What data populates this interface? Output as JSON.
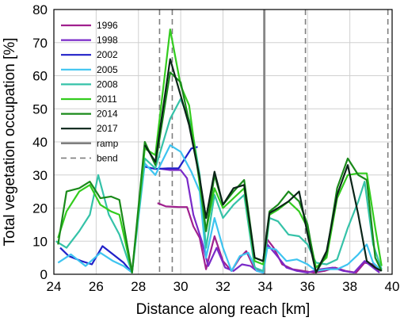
{
  "chart_data": {
    "type": "line",
    "xlabel": "Distance along reach [km]",
    "ylabel": "Total vegetation occupation [%]",
    "xlim": [
      24,
      40
    ],
    "ylim": [
      0,
      80
    ],
    "xticks": [
      24,
      26,
      28,
      30,
      32,
      34,
      36,
      38,
      40
    ],
    "yticks": [
      0,
      10,
      20,
      30,
      40,
      50,
      60,
      70,
      80
    ],
    "grid": true,
    "legend_placement": "top-left",
    "ramp": {
      "name": "ramp",
      "x": 33.95,
      "color": "#7f7f7f"
    },
    "bends": {
      "name": "bend",
      "x": [
        29.0,
        29.6,
        35.9,
        39.8
      ],
      "color": "#7f7f7f"
    },
    "series": [
      {
        "name": "1996",
        "color": "#a0208e",
        "segments": [
          [
            [
              28.9,
              21.5
            ],
            [
              29.3,
              20.5
            ],
            [
              29.9,
              20.3
            ],
            [
              30.3,
              20.3
            ],
            [
              30.6,
              14.5
            ],
            [
              30.9,
              11
            ],
            [
              31.2,
              1.5
            ],
            [
              31.6,
              11.5
            ],
            [
              32.0,
              4
            ],
            [
              32.4,
              1
            ],
            [
              32.8,
              5
            ],
            [
              33.1,
              7
            ],
            [
              33.5,
              1.5
            ],
            [
              33.9,
              0.5
            ],
            [
              34.1,
              10.5
            ],
            [
              34.4,
              8
            ],
            [
              34.8,
              3
            ],
            [
              35.3,
              1.5
            ],
            [
              35.8,
              1
            ],
            [
              36.3,
              0.5
            ],
            [
              36.8,
              1
            ],
            [
              37.3,
              2
            ],
            [
              37.8,
              1
            ],
            [
              38.3,
              0.5
            ],
            [
              38.7,
              3.5
            ],
            [
              39.1,
              3
            ],
            [
              39.4,
              0.5
            ]
          ]
        ]
      },
      {
        "name": "1998",
        "color": "#7a2ac8",
        "segments": [
          [
            [
              28.9,
              32
            ],
            [
              29.5,
              31.5
            ],
            [
              30.0,
              31.5
            ],
            [
              30.3,
              29
            ],
            [
              30.6,
              18
            ],
            [
              31.0,
              10
            ],
            [
              31.3,
              2.5
            ],
            [
              31.7,
              8
            ],
            [
              32.1,
              2
            ],
            [
              32.5,
              1
            ],
            [
              32.9,
              3
            ],
            [
              33.3,
              2.5
            ],
            [
              33.6,
              1
            ],
            [
              33.9,
              0.5
            ],
            [
              34.1,
              9
            ],
            [
              34.5,
              6
            ],
            [
              35.0,
              2
            ],
            [
              35.5,
              1
            ],
            [
              36.0,
              0.5
            ],
            [
              36.6,
              1.5
            ],
            [
              37.2,
              2
            ],
            [
              37.7,
              1
            ],
            [
              38.2,
              0.5
            ],
            [
              38.7,
              4
            ],
            [
              39.1,
              2
            ],
            [
              39.4,
              0.5
            ]
          ]
        ]
      },
      {
        "name": "2002",
        "color": "#2020c8",
        "segments": [
          [
            [
              24.3,
              8
            ],
            [
              24.7,
              5.5
            ],
            [
              25.3,
              4
            ],
            [
              25.8,
              3
            ],
            [
              26.3,
              8.5
            ],
            [
              26.8,
              6
            ],
            [
              27.3,
              3.5
            ],
            [
              27.7,
              0.5
            ]
          ],
          [
            [
              28.3,
              32.5
            ],
            [
              28.8,
              31.8
            ],
            [
              29.4,
              32
            ],
            [
              29.9,
              32
            ],
            [
              30.5,
              38
            ],
            [
              30.8,
              38.5
            ]
          ]
        ]
      },
      {
        "name": "2005",
        "color": "#3ec4f0",
        "segments": [
          [
            [
              24.2,
              3.5
            ],
            [
              24.8,
              6
            ],
            [
              25.5,
              2.5
            ],
            [
              26.2,
              6.5
            ],
            [
              26.8,
              4
            ],
            [
              27.3,
              2.5
            ],
            [
              27.7,
              0.5
            ],
            [
              28.3,
              33.5
            ],
            [
              28.8,
              30
            ],
            [
              29.5,
              39
            ],
            [
              30.0,
              37
            ],
            [
              30.5,
              31
            ],
            [
              30.9,
              25
            ],
            [
              31.2,
              5
            ],
            [
              31.6,
              17
            ],
            [
              32.0,
              8
            ],
            [
              32.4,
              1
            ],
            [
              32.8,
              5.5
            ],
            [
              33.2,
              6.5
            ],
            [
              33.6,
              1
            ],
            [
              33.9,
              0.5
            ],
            [
              34.1,
              8
            ],
            [
              34.5,
              7.5
            ],
            [
              35.0,
              4
            ],
            [
              35.5,
              4.5
            ],
            [
              36.0,
              3
            ],
            [
              36.4,
              1
            ],
            [
              36.9,
              1.5
            ],
            [
              37.4,
              1.5
            ],
            [
              37.9,
              3
            ],
            [
              38.4,
              6
            ],
            [
              38.8,
              9
            ],
            [
              39.1,
              3.5
            ],
            [
              39.5,
              1
            ]
          ]
        ]
      },
      {
        "name": "2008",
        "color": "#35c2a8",
        "segments": [
          [
            [
              24.1,
              10
            ],
            [
              24.6,
              8
            ],
            [
              25.2,
              13
            ],
            [
              25.7,
              18
            ],
            [
              26.1,
              30
            ],
            [
              26.6,
              18
            ],
            [
              27.1,
              12
            ],
            [
              27.7,
              0.5
            ],
            [
              28.3,
              35
            ],
            [
              28.8,
              32
            ],
            [
              29.5,
              47
            ],
            [
              30.0,
              53
            ],
            [
              30.5,
              45
            ],
            [
              30.9,
              30
            ],
            [
              31.2,
              8
            ],
            [
              31.6,
              24
            ],
            [
              32.0,
              17
            ],
            [
              32.5,
              21
            ],
            [
              33.0,
              24
            ],
            [
              33.5,
              2
            ],
            [
              33.9,
              1
            ],
            [
              34.2,
              17
            ],
            [
              34.6,
              16
            ],
            [
              35.1,
              12
            ],
            [
              35.6,
              11.5
            ],
            [
              36.0,
              9
            ],
            [
              36.4,
              3.5
            ],
            [
              36.9,
              3
            ],
            [
              37.4,
              4.5
            ],
            [
              37.9,
              14
            ],
            [
              38.4,
              22
            ],
            [
              38.7,
              28
            ],
            [
              39.1,
              9
            ],
            [
              39.5,
              1.5
            ]
          ]
        ]
      },
      {
        "name": "2011",
        "color": "#33cc1e",
        "segments": [
          [
            [
              24.2,
              11
            ],
            [
              24.6,
              19
            ],
            [
              25.2,
              25
            ],
            [
              25.7,
              27
            ],
            [
              26.2,
              21
            ],
            [
              26.7,
              19
            ],
            [
              27.1,
              18
            ],
            [
              27.7,
              0.5
            ],
            [
              28.3,
              38
            ],
            [
              28.8,
              36
            ],
            [
              29.5,
              74
            ],
            [
              30.0,
              57
            ],
            [
              30.4,
              51
            ],
            [
              30.9,
              27
            ],
            [
              31.2,
              13
            ],
            [
              31.6,
              26
            ],
            [
              32.0,
              20
            ],
            [
              32.5,
              23
            ],
            [
              33.0,
              26
            ],
            [
              33.5,
              4
            ],
            [
              33.9,
              3
            ],
            [
              34.2,
              18
            ],
            [
              34.6,
              19.5
            ],
            [
              35.1,
              22
            ],
            [
              35.6,
              19
            ],
            [
              36.0,
              14
            ],
            [
              36.4,
              2
            ],
            [
              36.9,
              5
            ],
            [
              37.4,
              23
            ],
            [
              37.9,
              30
            ],
            [
              38.4,
              30.5
            ],
            [
              38.8,
              30.5
            ],
            [
              39.2,
              14
            ],
            [
              39.5,
              2.5
            ]
          ]
        ]
      },
      {
        "name": "2014",
        "color": "#1a8a1a",
        "segments": [
          [
            [
              24.2,
              9
            ],
            [
              24.6,
              25
            ],
            [
              25.2,
              26
            ],
            [
              25.7,
              28
            ],
            [
              26.2,
              23
            ],
            [
              26.7,
              23.5
            ],
            [
              27.1,
              22.5
            ],
            [
              27.7,
              0.5
            ],
            [
              28.3,
              40
            ],
            [
              28.8,
              33
            ],
            [
              29.5,
              61
            ],
            [
              30.0,
              58
            ],
            [
              30.4,
              46
            ],
            [
              30.9,
              29
            ],
            [
              31.2,
              13
            ],
            [
              31.6,
              30
            ],
            [
              32.0,
              21
            ],
            [
              32.5,
              25
            ],
            [
              33.0,
              28.5
            ],
            [
              33.5,
              5
            ],
            [
              33.9,
              4
            ],
            [
              34.2,
              19
            ],
            [
              34.6,
              21
            ],
            [
              35.1,
              25
            ],
            [
              35.6,
              22
            ],
            [
              36.0,
              15
            ],
            [
              36.4,
              0.5
            ],
            [
              36.9,
              6
            ],
            [
              37.4,
              26
            ],
            [
              37.9,
              35
            ],
            [
              38.4,
              30
            ],
            [
              38.8,
              28.5
            ],
            [
              39.2,
              5
            ],
            [
              39.5,
              1
            ]
          ]
        ]
      },
      {
        "name": "2017",
        "color": "#0a2418",
        "segments": [
          [
            [
              28.3,
              39
            ],
            [
              28.8,
              34
            ],
            [
              29.5,
              65
            ],
            [
              30.0,
              54
            ],
            [
              30.4,
              45
            ],
            [
              30.9,
              29
            ],
            [
              31.2,
              17
            ],
            [
              31.6,
              31
            ],
            [
              32.0,
              21
            ],
            [
              32.5,
              26
            ],
            [
              33.0,
              27
            ],
            [
              33.5,
              5
            ],
            [
              33.9,
              4
            ],
            [
              34.2,
              18.5
            ],
            [
              34.6,
              20
            ],
            [
              35.1,
              22
            ],
            [
              35.6,
              25
            ],
            [
              36.0,
              12
            ],
            [
              36.4,
              0.5
            ],
            [
              36.9,
              7
            ],
            [
              37.4,
              24
            ],
            [
              37.9,
              33
            ],
            [
              38.4,
              18
            ],
            [
              38.8,
              4
            ],
            [
              39.2,
              2
            ],
            [
              39.5,
              1
            ]
          ]
        ]
      }
    ]
  }
}
